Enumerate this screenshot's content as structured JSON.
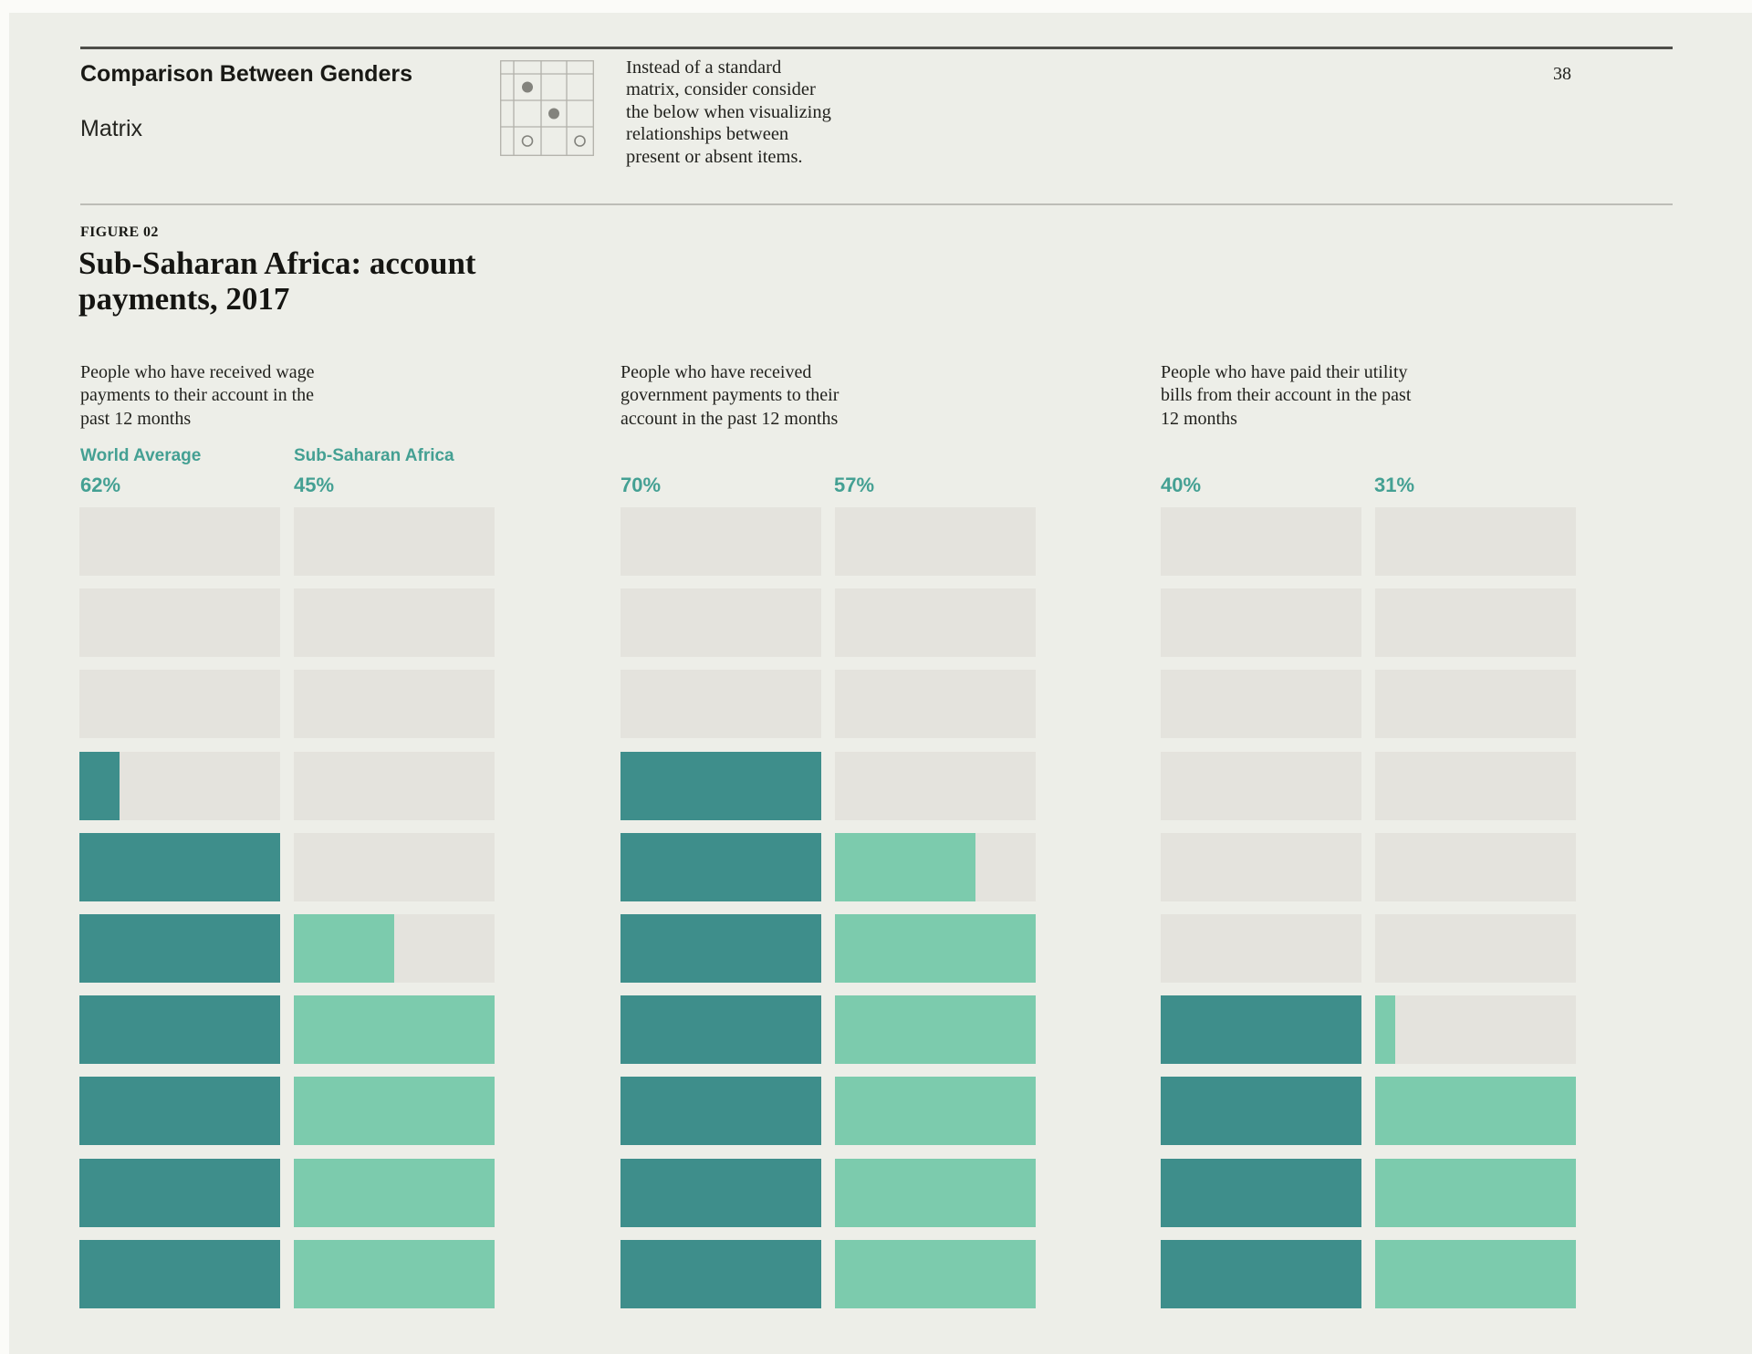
{
  "page": {
    "number": "38"
  },
  "header": {
    "title_lines": [
      "Comparison Between",
      "Genders"
    ],
    "subtitle": "Matrix",
    "icon": "matrix-grid-icon",
    "note_lines": [
      "Instead of a standard",
      "matrix, consider consider",
      "the below when visualizing",
      "relationships between",
      "present or absent items."
    ]
  },
  "figure": {
    "eyebrow": "FIGURE 02",
    "title_lines": [
      "Sub-Saharan Africa: account",
      "payments, 2017"
    ]
  },
  "legend": {
    "series1": "World Average",
    "series2": "Sub-Saharan Africa"
  },
  "colors": {
    "accent_text": "#44a093",
    "series1": "#3e8e8b",
    "series2": "#7ccbad",
    "empty_track": "#e4e3dd",
    "page_background": "#edeee8"
  },
  "chart_data": {
    "type": "bar",
    "subtype": "waffle-row-fill",
    "title": "Sub-Saharan Africa: account payments, 2017",
    "rows_per_chart": 10,
    "row_unit_pct": 10,
    "series": [
      "World Average",
      "Sub-Saharan Africa"
    ],
    "legend_position": "above first group only",
    "groups": [
      {
        "label_lines": [
          "People who have received wage",
          "payments to their account in the",
          "past 12 months"
        ],
        "values_pct": [
          62,
          45
        ],
        "value_labels": [
          "62%",
          "45%"
        ],
        "row_fills_top_to_bottom": [
          [
            0,
            0,
            0,
            0.2,
            1,
            1,
            1,
            1,
            1,
            1
          ],
          [
            0,
            0,
            0,
            0,
            0,
            0.5,
            1,
            1,
            1,
            1
          ]
        ]
      },
      {
        "label_lines": [
          "People who have received",
          "government payments to their",
          "account in the past 12 months"
        ],
        "values_pct": [
          70,
          57
        ],
        "value_labels": [
          "70%",
          "57%"
        ],
        "row_fills_top_to_bottom": [
          [
            0,
            0,
            0,
            1,
            1,
            1,
            1,
            1,
            1,
            1
          ],
          [
            0,
            0,
            0,
            0,
            0.7,
            1,
            1,
            1,
            1,
            1
          ]
        ]
      },
      {
        "label_lines": [
          "People who have paid their utility",
          "bills from their account in the past",
          "12 months"
        ],
        "values_pct": [
          40,
          31
        ],
        "value_labels": [
          "40%",
          "31%"
        ],
        "row_fills_top_to_bottom": [
          [
            0,
            0,
            0,
            0,
            0,
            0,
            1,
            1,
            1,
            1
          ],
          [
            0,
            0,
            0,
            0,
            0,
            0,
            0.1,
            1,
            1,
            1
          ]
        ]
      }
    ]
  }
}
